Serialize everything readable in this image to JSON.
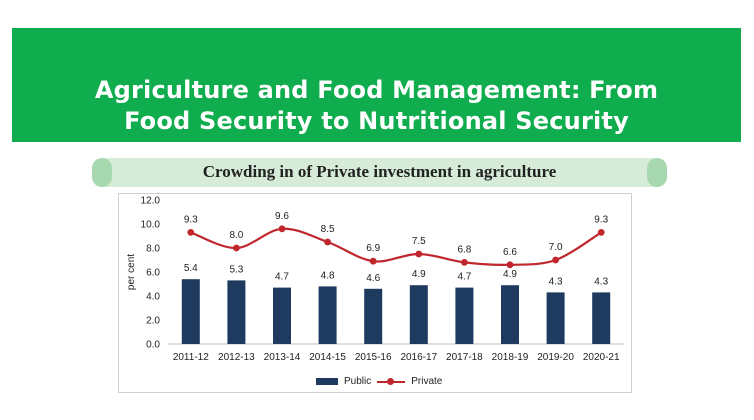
{
  "banner": {
    "line1": "Agriculture and Food Management: From",
    "line2": "Food Security to Nutritional Security"
  },
  "colors": {
    "banner": "#0fad4e",
    "public": "#1f3a5f",
    "private": "#c0272d"
  },
  "chart_data": {
    "type": "bar",
    "title": "Crowding in of Private investment in agriculture",
    "ylabel": "per cent",
    "xlabel": "",
    "ylim": [
      0,
      12
    ],
    "yticks": [
      "0.0",
      "2.0",
      "4.0",
      "6.0",
      "8.0",
      "10.0",
      "12.0"
    ],
    "categories": [
      "2011-12",
      "2012-13",
      "2013-14",
      "2014-15",
      "2015-16",
      "2016-17",
      "2017-18",
      "2018-19",
      "2019-20",
      "2020-21"
    ],
    "series": [
      {
        "name": "Public",
        "kind": "bar",
        "values": [
          5.4,
          5.3,
          4.7,
          4.8,
          4.6,
          4.9,
          4.7,
          4.9,
          4.3,
          4.3
        ]
      },
      {
        "name": "Private",
        "kind": "line",
        "values": [
          9.3,
          8.0,
          9.6,
          8.5,
          6.9,
          7.5,
          6.8,
          6.6,
          7.0,
          9.3
        ]
      }
    ],
    "legend": "bottom"
  }
}
